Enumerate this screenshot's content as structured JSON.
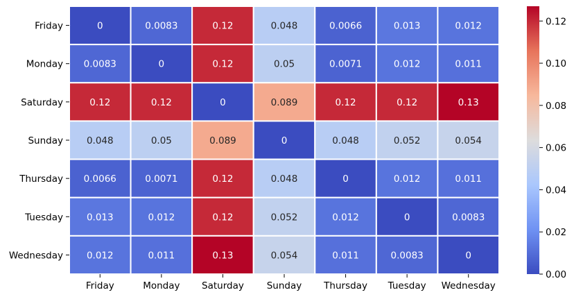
{
  "chart_data": {
    "type": "heatmap",
    "title": "",
    "xlabel": "",
    "ylabel": "",
    "x_categories": [
      "Friday",
      "Monday",
      "Saturday",
      "Sunday",
      "Thursday",
      "Tuesday",
      "Wednesday"
    ],
    "y_categories": [
      "Friday",
      "Monday",
      "Saturday",
      "Sunday",
      "Thursday",
      "Tuesday",
      "Wednesday"
    ],
    "values": [
      [
        0,
        0.0083,
        0.12,
        0.048,
        0.0066,
        0.013,
        0.012
      ],
      [
        0.0083,
        0,
        0.12,
        0.05,
        0.0071,
        0.012,
        0.011
      ],
      [
        0.12,
        0.12,
        0,
        0.089,
        0.12,
        0.12,
        0.13
      ],
      [
        0.048,
        0.05,
        0.089,
        0,
        0.048,
        0.052,
        0.054
      ],
      [
        0.0066,
        0.0071,
        0.12,
        0.048,
        0,
        0.012,
        0.011
      ],
      [
        0.013,
        0.012,
        0.12,
        0.052,
        0.012,
        0,
        0.0083
      ],
      [
        0.012,
        0.011,
        0.13,
        0.054,
        0.011,
        0.0083,
        0
      ]
    ],
    "labels": [
      [
        "0",
        "0.0083",
        "0.12",
        "0.048",
        "0.0066",
        "0.013",
        "0.012"
      ],
      [
        "0.0083",
        "0",
        "0.12",
        "0.05",
        "0.0071",
        "0.012",
        "0.011"
      ],
      [
        "0.12",
        "0.12",
        "0",
        "0.089",
        "0.12",
        "0.12",
        "0.13"
      ],
      [
        "0.048",
        "0.05",
        "0.089",
        "0",
        "0.048",
        "0.052",
        "0.054"
      ],
      [
        "0.0066",
        "0.0071",
        "0.12",
        "0.048",
        "0",
        "0.012",
        "0.011"
      ],
      [
        "0.013",
        "0.012",
        "0.12",
        "0.052",
        "0.012",
        "0",
        "0.0083"
      ],
      [
        "0.012",
        "0.011",
        "0.13",
        "0.054",
        "0.011",
        "0.0083",
        "0"
      ]
    ],
    "colormap": "coolwarm",
    "colormap_stops": [
      "#3b4cc0",
      "#6f92f3",
      "#aac7fd",
      "#dddcdc",
      "#f7b89c",
      "#e7745b",
      "#b40426"
    ],
    "vmin": 0,
    "vmax": 0.127,
    "colorbar_ticks": [
      0.0,
      0.02,
      0.04,
      0.06,
      0.08,
      0.1,
      0.12
    ],
    "colorbar_tick_labels": [
      "0.00",
      "0.02",
      "0.04",
      "0.06",
      "0.08",
      "0.10",
      "0.12"
    ],
    "grid": true,
    "cell_border_color": "#ffffff",
    "legend_placement": "right"
  }
}
